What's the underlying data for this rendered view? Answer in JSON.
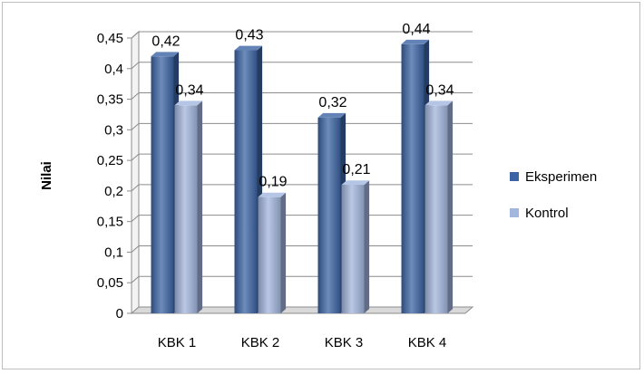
{
  "chart_data": {
    "type": "bar",
    "categories": [
      "KBK 1",
      "KBK 2",
      "KBK 3",
      "KBK 4"
    ],
    "series": [
      {
        "name": "Eksperimen",
        "values": [
          0.42,
          0.43,
          0.32,
          0.44
        ],
        "labels": [
          "0,42",
          "0,43",
          "0,32",
          "0,44"
        ],
        "color": "#3c64a4"
      },
      {
        "name": "Kontrol",
        "values": [
          0.34,
          0.19,
          0.21,
          0.34
        ],
        "labels": [
          "0,34",
          "0,19",
          "0,21",
          "0,34"
        ],
        "color": "#a3b6de"
      }
    ],
    "yticks": [
      "0",
      "0,05",
      "0,1",
      "0,15",
      "0,2",
      "0,25",
      "0,3",
      "0,35",
      "0,4",
      "0,45"
    ],
    "ylim": [
      0,
      0.45
    ],
    "ylabel": "Nilai",
    "xlabel": "",
    "title": "",
    "grid": true,
    "legend": "right",
    "style": "3d-bar"
  }
}
